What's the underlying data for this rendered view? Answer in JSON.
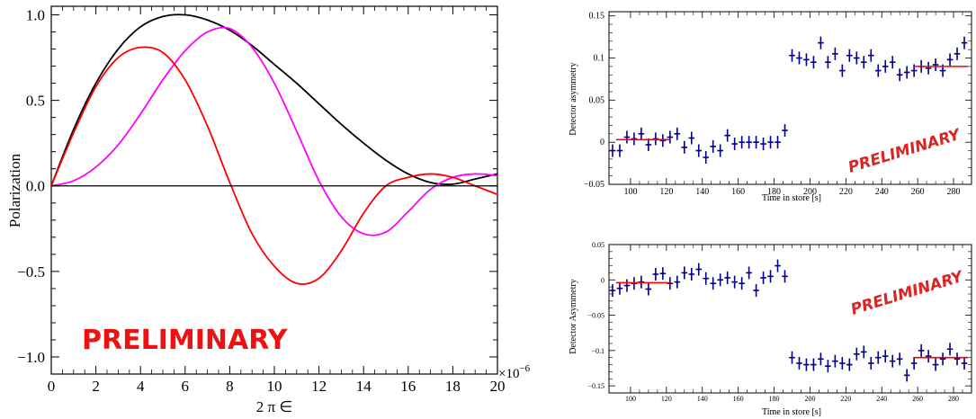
{
  "chart_data": [
    {
      "type": "line",
      "xlabel": "2 π ∈",
      "ylabel": "Polarization",
      "x_exponent_label": "×10",
      "x_exponent_sup": "−6",
      "xlim": [
        0,
        20
      ],
      "ylim": [
        -1.1,
        1.05
      ],
      "x_ticks": [
        0,
        2,
        4,
        6,
        8,
        10,
        12,
        14,
        16,
        18,
        20
      ],
      "x_tick_labels": [
        "0",
        "2",
        "4",
        "6",
        "8",
        "10",
        "12",
        "14",
        "16",
        "18",
        "20"
      ],
      "y_ticks": [
        -1.0,
        -0.5,
        0.0,
        0.5,
        1.0
      ],
      "y_tick_labels": [
        "−1.0",
        "−0.5",
        "0.0",
        "0.5",
        "1.0"
      ],
      "watermark": "PRELIMINARY",
      "series": [
        {
          "color": "#000000",
          "x": [
            0,
            1,
            2,
            3,
            4,
            5,
            6,
            7,
            8,
            9,
            10,
            11,
            12,
            13,
            14,
            15,
            16,
            17,
            18,
            19,
            20
          ],
          "y": [
            0,
            0.33,
            0.6,
            0.8,
            0.93,
            0.99,
            1.0,
            0.97,
            0.91,
            0.82,
            0.71,
            0.6,
            0.48,
            0.36,
            0.25,
            0.15,
            0.07,
            0.02,
            0.01,
            0.04,
            0.07
          ]
        },
        {
          "color": "#ff00ff",
          "x": [
            0,
            1,
            2,
            3,
            4,
            5,
            6,
            7,
            8,
            9,
            10,
            11,
            12,
            13,
            14,
            15,
            16,
            17,
            18,
            19,
            20
          ],
          "y": [
            0,
            0.03,
            0.11,
            0.24,
            0.42,
            0.62,
            0.79,
            0.9,
            0.92,
            0.81,
            0.6,
            0.32,
            0.03,
            -0.18,
            -0.28,
            -0.27,
            -0.15,
            -0.02,
            0.05,
            0.07,
            0.06
          ]
        },
        {
          "color": "#ff0000",
          "x": [
            0,
            1,
            2,
            3,
            4,
            5,
            6,
            7,
            8,
            9,
            10,
            11,
            12,
            13,
            14,
            15,
            16,
            17,
            18,
            19,
            20
          ],
          "y": [
            0,
            0.31,
            0.58,
            0.75,
            0.81,
            0.78,
            0.62,
            0.35,
            0.02,
            -0.28,
            -0.47,
            -0.57,
            -0.54,
            -0.38,
            -0.16,
            0.0,
            0.05,
            0.07,
            0.05,
            0.0,
            -0.05
          ]
        },
        {
          "color": "#000000",
          "x": [
            0,
            20
          ],
          "y": [
            0,
            0
          ]
        }
      ]
    },
    {
      "type": "scatter",
      "xlabel": "Time in store [s]",
      "ylabel": "Detector asymmetry",
      "xlim": [
        88,
        290
      ],
      "ylim": [
        -0.05,
        0.155
      ],
      "x_ticks": [
        100,
        120,
        140,
        160,
        180,
        200,
        220,
        240,
        260,
        280
      ],
      "x_tick_labels": [
        "100",
        "120",
        "140",
        "160",
        "180",
        "200",
        "220",
        "240",
        "260",
        "280"
      ],
      "y_ticks": [
        -0.05,
        0,
        0.05,
        0.1,
        0.15
      ],
      "y_tick_labels": [
        "−0.05",
        "0",
        "0.05",
        "0.1",
        "0.15"
      ],
      "watermark": "PRELIMINARY",
      "series": [
        {
          "color": "#000080",
          "x": [
            90,
            94,
            98,
            102,
            106,
            110,
            114,
            118,
            122,
            126,
            130,
            134,
            138,
            142,
            146,
            150,
            154,
            158,
            162,
            166,
            170,
            174,
            178,
            182,
            186,
            190,
            194,
            198,
            202,
            206,
            210,
            214,
            218,
            222,
            226,
            230,
            234,
            238,
            242,
            246,
            250,
            254,
            258,
            262,
            266,
            270,
            274,
            278,
            282,
            286
          ],
          "y": [
            -0.01,
            -0.01,
            0.006,
            0.004,
            0.01,
            -0.003,
            0.004,
            0.002,
            0.006,
            0.01,
            -0.006,
            0.005,
            -0.01,
            -0.018,
            -0.005,
            -0.01,
            0.008,
            -0.002,
            0.0,
            0.0,
            0.0,
            -0.002,
            0.0,
            0.0,
            0.014,
            0.103,
            0.1,
            0.098,
            0.095,
            0.118,
            0.095,
            0.105,
            0.085,
            0.103,
            0.1,
            0.095,
            0.103,
            0.085,
            0.09,
            0.095,
            0.08,
            0.083,
            0.085,
            0.09,
            0.088,
            0.092,
            0.085,
            0.098,
            0.105,
            0.118
          ]
        },
        {
          "color": "#ff0000",
          "type": "segments",
          "segments": [
            {
              "x": [
                92,
                122
              ],
              "y": [
                0.003,
                0.003
              ]
            },
            {
              "x": [
                258,
                288
              ],
              "y": [
                0.09,
                0.09
              ]
            }
          ]
        }
      ]
    },
    {
      "type": "scatter",
      "xlabel": "Time in store [s]",
      "ylabel": "Detector Asymmetry",
      "xlim": [
        88,
        290
      ],
      "ylim": [
        -0.16,
        0.05
      ],
      "x_ticks": [
        100,
        120,
        140,
        160,
        180,
        200,
        220,
        240,
        260,
        280
      ],
      "x_tick_labels": [
        "100",
        "120",
        "140",
        "160",
        "180",
        "200",
        "220",
        "240",
        "260",
        "280"
      ],
      "y_ticks": [
        -0.15,
        -0.1,
        -0.05,
        0,
        0.05
      ],
      "y_tick_labels": [
        "−0.15",
        "−0.1",
        "−0.05",
        "0",
        "0.05"
      ],
      "watermark": "PRELIMINARY",
      "series": [
        {
          "color": "#000080",
          "x": [
            90,
            94,
            98,
            102,
            106,
            110,
            114,
            118,
            122,
            126,
            130,
            134,
            138,
            142,
            146,
            150,
            154,
            158,
            162,
            166,
            170,
            174,
            178,
            182,
            186,
            190,
            194,
            198,
            202,
            206,
            210,
            214,
            218,
            222,
            226,
            230,
            234,
            238,
            242,
            246,
            250,
            254,
            258,
            262,
            266,
            270,
            274,
            278,
            282,
            286
          ],
          "y": [
            -0.015,
            -0.012,
            -0.008,
            -0.005,
            -0.003,
            -0.013,
            0.008,
            0.009,
            -0.005,
            -0.003,
            0.01,
            0.008,
            0.015,
            0.002,
            -0.005,
            0.0,
            0.003,
            -0.003,
            -0.005,
            0.01,
            -0.015,
            0.003,
            0.005,
            0.02,
            0.005,
            -0.11,
            -0.118,
            -0.12,
            -0.12,
            -0.112,
            -0.122,
            -0.115,
            -0.118,
            -0.12,
            -0.105,
            -0.102,
            -0.118,
            -0.11,
            -0.108,
            -0.115,
            -0.112,
            -0.135,
            -0.118,
            -0.1,
            -0.108,
            -0.12,
            -0.112,
            -0.098,
            -0.112,
            -0.118
          ]
        },
        {
          "color": "#ff0000",
          "type": "segments",
          "segments": [
            {
              "x": [
                92,
                122
              ],
              "y": [
                -0.004,
                -0.004
              ]
            },
            {
              "x": [
                258,
                288
              ],
              "y": [
                -0.11,
                -0.11
              ]
            }
          ]
        }
      ]
    }
  ]
}
